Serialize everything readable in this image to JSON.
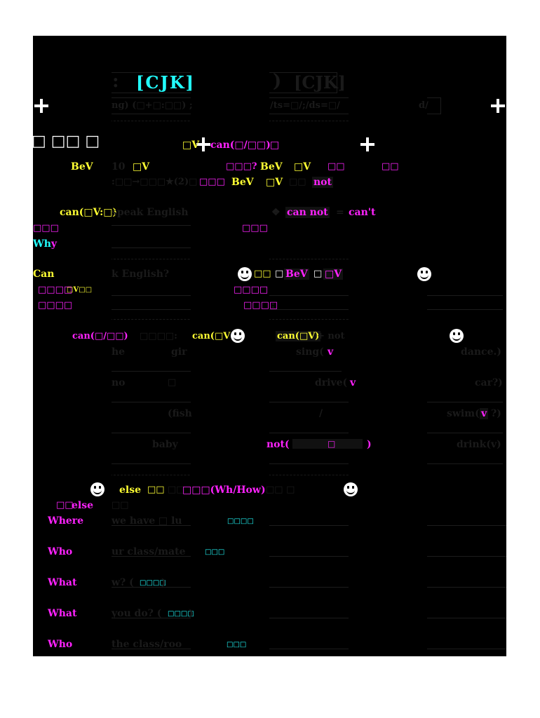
{
  "title": {
    "prefix": ":",
    "cyan": "[CJK]",
    "suffix": ")",
    "tail": "[CJK]"
  },
  "subtitle": {
    "left": "ng) (□+□:□□) ;",
    "right": "/ts=□/;/ds=□/",
    "end": "d/"
  },
  "section1": {
    "marker": "□ □□ □",
    "heading_a": "□V",
    "heading_b": "can(□/□□)",
    "heading_c": "□",
    "row1_a": "BeV",
    "row1_b": "10",
    "row1_c": "□V",
    "row1_d": "□□□?",
    "row1_e": "BeV",
    "row1_f": "□V",
    "row1_g": "□□",
    "row1_h": "□□",
    "row2_a": ":□□→□□□★(2)□",
    "row2_b": "□□□",
    "row2_c": "BeV",
    "row2_d": "□V",
    "row2_e": "□□",
    "row2_f": "not",
    "can_label": "can(□V:□)",
    "can_speak": "speak English",
    "rule_a": "can not",
    "rule_eq": "=",
    "rule_b": "can't",
    "m_label1": "□□□",
    "m_label2": "□□□",
    "why": "Wh",
    "why_y": "y",
    "can_q": "Can",
    "can_q_rest": "k English?",
    "bev_a": "□□",
    "bev_b": "□",
    "bev_c": "BeV",
    "bev_d": "□",
    "bev_e": "□V",
    "m_small1": "□□□□",
    "m_small1b": "□V□□",
    "m_small2": "□□□□",
    "m_small3": "□□□□",
    "m_small4": "□□□□",
    "m_small4b": ":"
  },
  "section2": {
    "h_a": "can(□/□□)",
    "h_b": "□□□□:",
    "h_c": "can(□V",
    "h_d": "can(□V)",
    "h_e": "+ not",
    "r1_a": "he",
    "r1_b": "gir",
    "r1_c": "sing(",
    "r1_d": "v",
    "r1_e": "dance.)",
    "r2_a": "no",
    "r2_b": "□",
    "r2_c": "drive(",
    "r2_d": "v",
    "r2_e": "car?)",
    "r3_a": "(fish",
    "r3_b": "/",
    "r3_c": "swim(",
    "r3_d": "v",
    "r3_e": "?)",
    "r4_a": "baby",
    "r4_b": "not(",
    "r4_c": "□",
    "r4_d": ")",
    "r4_e": "drink(v)"
  },
  "section3": {
    "h_a": "else",
    "h_b": "□□",
    "h_c": "□□",
    "h_d": "□□□(Wh/How)",
    "h_e": "□□ □",
    "sub_a": "□□",
    "sub_b": "else",
    "sub_c": "□□",
    "q1_w": "Where",
    "q1_t": "we have □ lu",
    "q1_n": "□□□□",
    "q2_w": "Who",
    "q2_t": "ur class/mate",
    "q2_n": "□□□",
    "q3_w": "What",
    "q3_t": "w? (",
    "q3_n": "□□□□",
    "q3_e": ")",
    "q4_w": "What",
    "q4_t": "you do? (",
    "q4_n": "□□□□",
    "q4_e": ")",
    "q5_w": "Who",
    "q5_t": "the class/roo",
    "q5_n": "□□□"
  }
}
